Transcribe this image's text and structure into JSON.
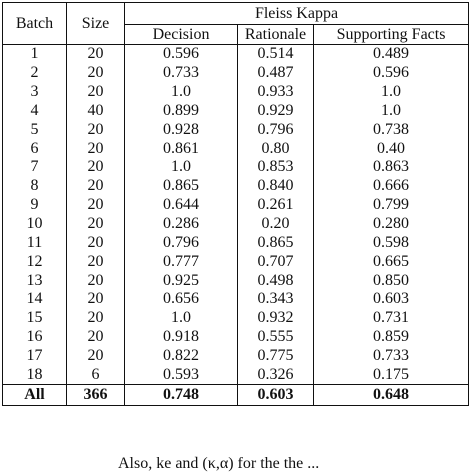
{
  "table": {
    "header": {
      "batch": "Batch",
      "size": "Size",
      "group": "Fleiss Kappa",
      "decision": "Decision",
      "rationale": "Rationale",
      "supporting_facts": "Supporting Facts"
    },
    "rows": [
      {
        "batch": "1",
        "size": "20",
        "decision": "0.596",
        "rationale": "0.514",
        "supporting_facts": "0.489"
      },
      {
        "batch": "2",
        "size": "20",
        "decision": "0.733",
        "rationale": "0.487",
        "supporting_facts": "0.596"
      },
      {
        "batch": "3",
        "size": "20",
        "decision": "1.0",
        "rationale": "0.933",
        "supporting_facts": "1.0"
      },
      {
        "batch": "4",
        "size": "40",
        "decision": "0.899",
        "rationale": "0.929",
        "supporting_facts": "1.0"
      },
      {
        "batch": "5",
        "size": "20",
        "decision": "0.928",
        "rationale": "0.796",
        "supporting_facts": "0.738"
      },
      {
        "batch": "6",
        "size": "20",
        "decision": "0.861",
        "rationale": "0.80",
        "supporting_facts": "0.40"
      },
      {
        "batch": "7",
        "size": "20",
        "decision": "1.0",
        "rationale": "0.853",
        "supporting_facts": "0.863"
      },
      {
        "batch": "8",
        "size": "20",
        "decision": "0.865",
        "rationale": "0.840",
        "supporting_facts": "0.666"
      },
      {
        "batch": "9",
        "size": "20",
        "decision": "0.644",
        "rationale": "0.261",
        "supporting_facts": "0.799"
      },
      {
        "batch": "10",
        "size": "20",
        "decision": "0.286",
        "rationale": "0.20",
        "supporting_facts": "0.280"
      },
      {
        "batch": "11",
        "size": "20",
        "decision": "0.796",
        "rationale": "0.865",
        "supporting_facts": "0.598"
      },
      {
        "batch": "12",
        "size": "20",
        "decision": "0.777",
        "rationale": "0.707",
        "supporting_facts": "0.665"
      },
      {
        "batch": "13",
        "size": "20",
        "decision": "0.925",
        "rationale": "0.498",
        "supporting_facts": "0.850"
      },
      {
        "batch": "14",
        "size": "20",
        "decision": "0.656",
        "rationale": "0.343",
        "supporting_facts": "0.603"
      },
      {
        "batch": "15",
        "size": "20",
        "decision": "1.0",
        "rationale": "0.932",
        "supporting_facts": "0.731"
      },
      {
        "batch": "16",
        "size": "20",
        "decision": "0.918",
        "rationale": "0.555",
        "supporting_facts": "0.859"
      },
      {
        "batch": "17",
        "size": "20",
        "decision": "0.822",
        "rationale": "0.775",
        "supporting_facts": "0.733"
      },
      {
        "batch": "18",
        "size": "6",
        "decision": "0.593",
        "rationale": "0.326",
        "supporting_facts": "0.175"
      }
    ],
    "total": {
      "batch": "All",
      "size": "366",
      "decision": "0.748",
      "rationale": "0.603",
      "supporting_facts": "0.648"
    }
  },
  "partial_text": "Also, ke and (κ,α) for the the ..."
}
